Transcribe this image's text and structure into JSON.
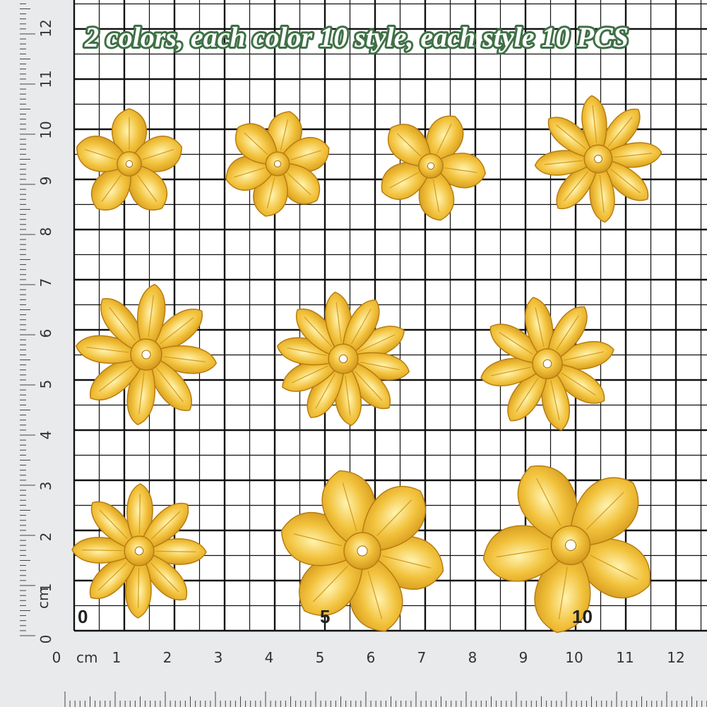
{
  "title": "2 colors, each color 10 style, each style 10 PCS",
  "grid_labels": [
    "0",
    "5",
    "10"
  ],
  "bottom_ruler": {
    "unit": "cm",
    "labels": [
      "0",
      "1",
      "2",
      "3",
      "4",
      "5",
      "6",
      "7",
      "8",
      "9",
      "10",
      "11",
      "12"
    ]
  },
  "left_ruler": {
    "unit": "cm",
    "labels": [
      "0",
      "1",
      "2",
      "3",
      "4",
      "5",
      "6",
      "7",
      "8",
      "9",
      "10",
      "11",
      "12"
    ]
  }
}
